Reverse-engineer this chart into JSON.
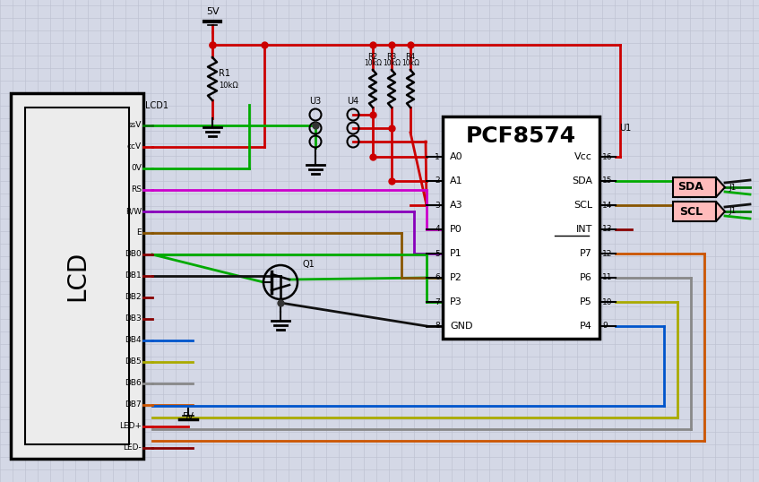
{
  "bg_color": "#d4d8e6",
  "grid_color": "#bfc3d3",
  "title": "PCF8574",
  "lcd_pins": [
    "ssV",
    "ccV",
    "0V",
    "RS",
    "R/W",
    "E",
    "DB0",
    "DB1",
    "DB2",
    "DB3",
    "DB4",
    "DB5",
    "DB6",
    "DB7",
    "LED+",
    "LED-"
  ],
  "ic_pins_left": [
    "A0",
    "A1",
    "A3",
    "P0",
    "P1",
    "P2",
    "P3",
    "GND"
  ],
  "ic_pins_right": [
    "Vcc",
    "SDA",
    "SCL",
    "INT",
    "P7",
    "P6",
    "P5",
    "P4"
  ],
  "ic_pin_nums_left": [
    "1",
    "2",
    "3",
    "4",
    "5",
    "6",
    "7",
    "8"
  ],
  "ic_pin_nums_right": [
    "16",
    "15",
    "14",
    "13",
    "12",
    "11",
    "10",
    "9"
  ],
  "colors": {
    "red": "#cc0000",
    "green": "#00aa00",
    "dark_green": "#007700",
    "magenta": "#cc00cc",
    "purple": "#8800bb",
    "brown": "#885500",
    "black": "#111111",
    "blue": "#0055cc",
    "yellow": "#aaaa00",
    "gray": "#888888",
    "orange": "#cc5500",
    "dark_red": "#880000",
    "node": "#333333",
    "conn_fill": "#ffbbbb"
  },
  "lw": 2.0
}
